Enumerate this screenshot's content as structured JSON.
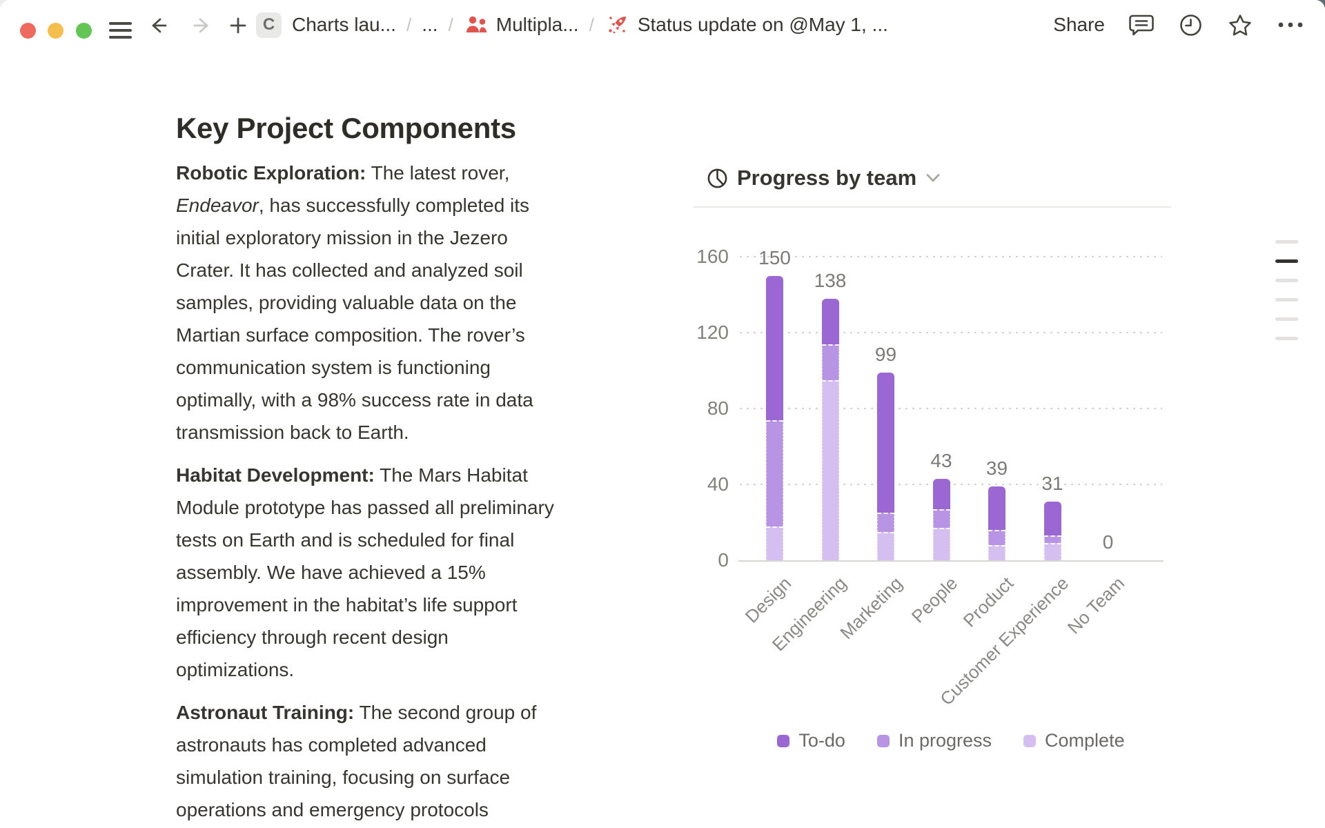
{
  "titlebar": {
    "page_badge_letter": "C",
    "breadcrumb": [
      {
        "label": "Charts lau..."
      },
      {
        "label": "..."
      },
      {
        "label": "Multipla..."
      },
      {
        "label": "Status update on @May 1, ..."
      }
    ],
    "separator": "/",
    "share_label": "Share"
  },
  "document": {
    "title": "Key Project Components",
    "paragraphs": [
      {
        "segments": [
          {
            "style": "bold",
            "text": "Robotic Exploration:"
          },
          {
            "style": "normal",
            "text": " The latest rover,\n"
          },
          {
            "style": "italic",
            "text": "Endeavor"
          },
          {
            "style": "normal",
            "text": ", has successfully completed its\ninitial exploratory mission in the Jezero\nCrater. It has collected and analyzed soil\nsamples, providing valuable data on the\nMartian surface composition. The rover’s\ncommunication system is functioning\noptimally, with a 98% success rate in data\ntransmission back to Earth."
          }
        ]
      },
      {
        "segments": [
          {
            "style": "bold",
            "text": "Habitat Development:"
          },
          {
            "style": "normal",
            "text": " The Mars Habitat\nModule prototype has passed all preliminary\ntests on Earth and is scheduled for final\nassembly. We have achieved a 15%\nimprovement in the habitat’s life support\nefficiency through recent design\noptimizations."
          }
        ]
      },
      {
        "segments": [
          {
            "style": "bold",
            "text": "Astronaut Training:"
          },
          {
            "style": "normal",
            "text": " The second group of\nastronauts has completed advanced\nsimulation training, focusing on surface\noperations and emergency protocols"
          }
        ]
      }
    ]
  },
  "chart_data": {
    "type": "bar",
    "stacked": true,
    "title": "Progress by team",
    "categories": [
      "Design",
      "Engineering",
      "Marketing",
      "People",
      "Product",
      "Customer Experience",
      "No Team"
    ],
    "series": [
      {
        "name": "To-do",
        "color": "#9a67d3",
        "values": [
          76,
          24,
          74,
          16,
          23,
          18,
          0
        ]
      },
      {
        "name": "In progress",
        "color": "#b894e4",
        "values": [
          56,
          19,
          10,
          10,
          8,
          4,
          0
        ]
      },
      {
        "name": "Complete",
        "color": "#d5bef0",
        "values": [
          18,
          95,
          15,
          17,
          8,
          9,
          0
        ]
      }
    ],
    "totals": [
      150,
      138,
      99,
      43,
      39,
      31,
      0
    ],
    "ylim": [
      0,
      160
    ],
    "yticks": [
      0,
      40,
      80,
      120,
      160
    ],
    "grid": "dotted-horizontal",
    "legend_position": "bottom",
    "x_tick_rotation": -45,
    "bar_value_labels": true
  },
  "colors": {
    "traffic_red": "#ee6a5e",
    "traffic_yellow": "#f5bf4e",
    "traffic_green": "#62c554",
    "page_icon_red": "#e0544d",
    "text_dark": "#37352f",
    "label_gray": "#81807b"
  }
}
